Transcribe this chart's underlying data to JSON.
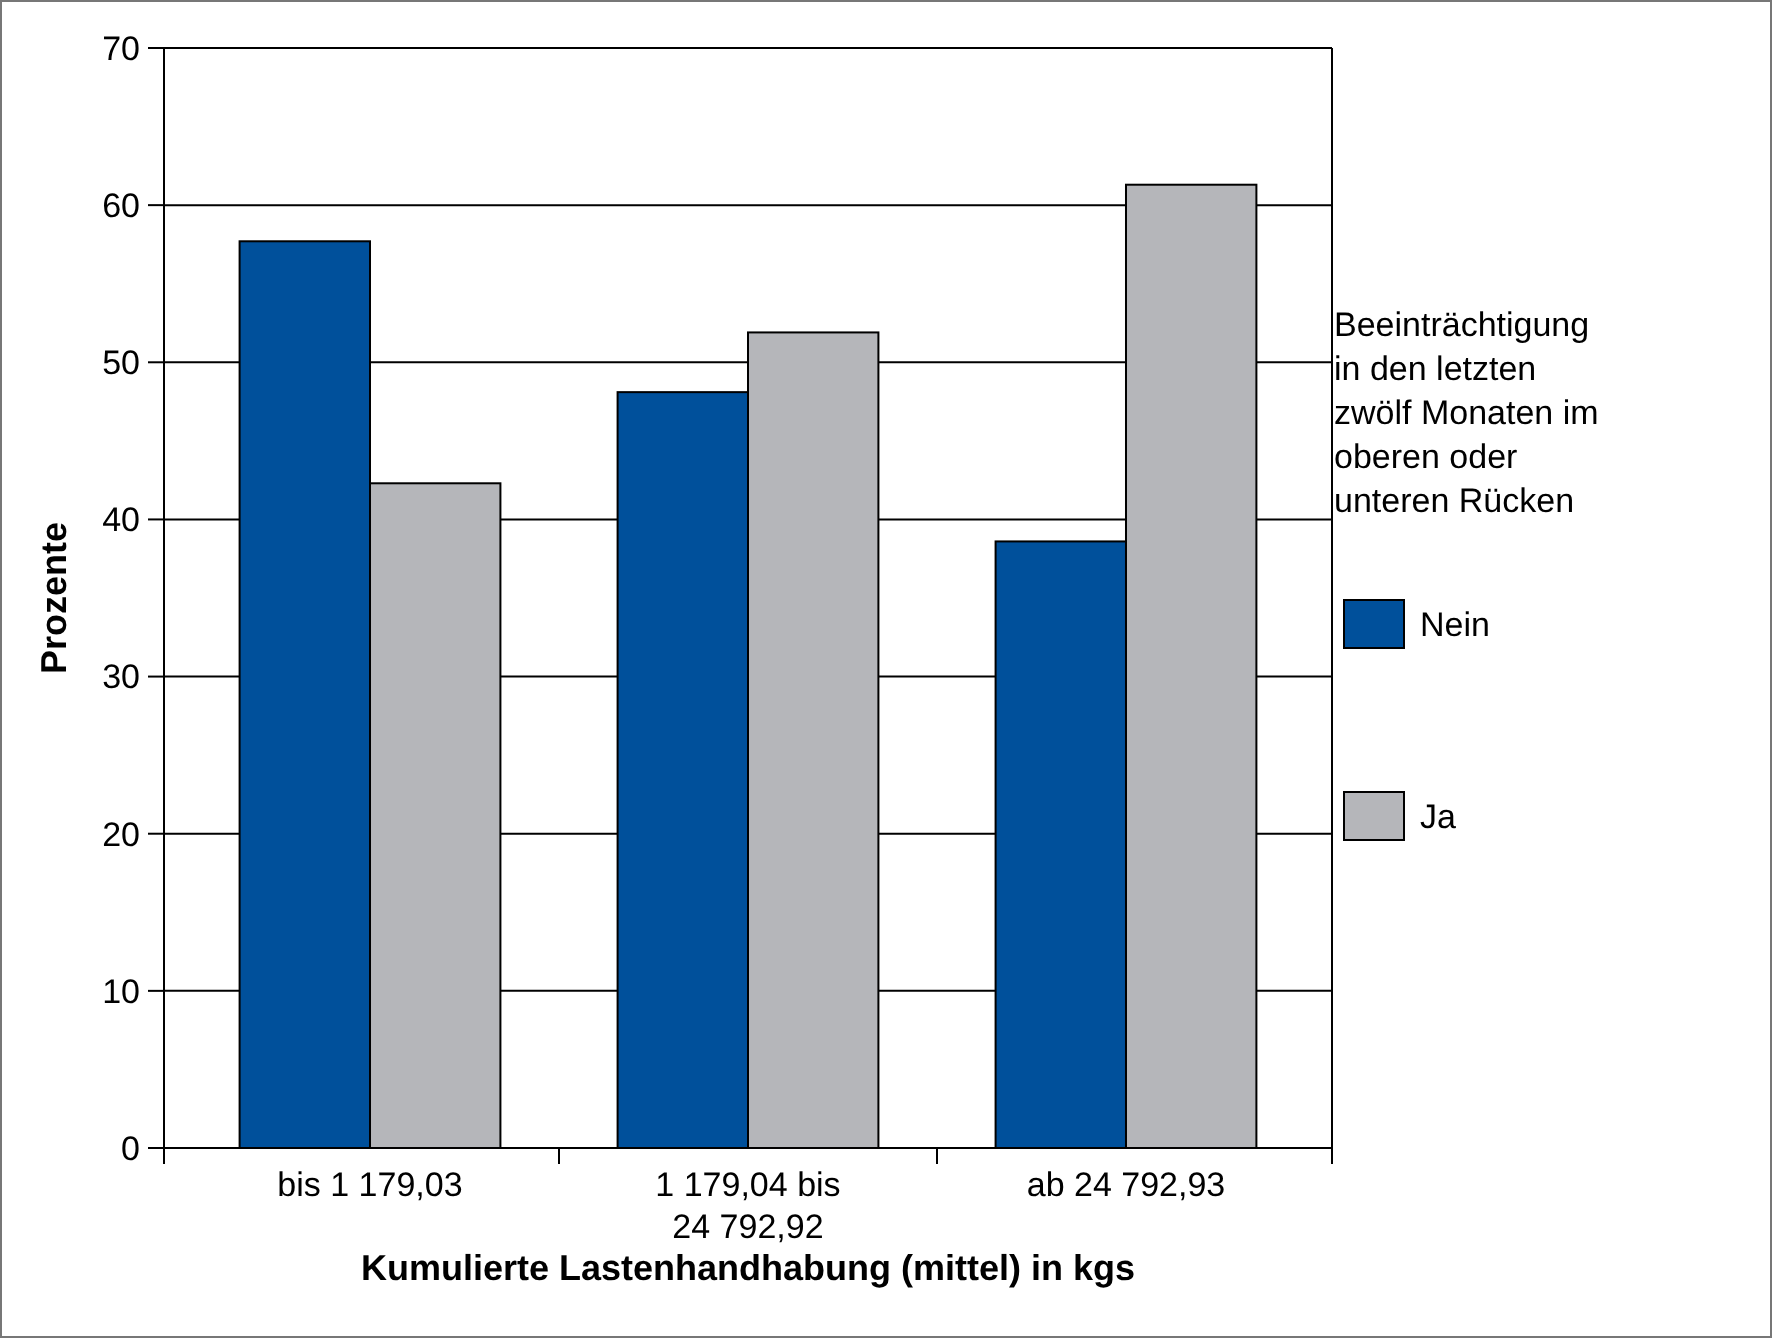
{
  "chart_data": {
    "type": "bar",
    "xlabel": "Kumulierte Lastenhandhabung (mittel) in kgs",
    "ylabel": "Prozente",
    "legend_title": "Beeinträchtigung in den letzten zwölf Monaten im oberen oder unteren Rücken",
    "categories": [
      "bis 1 179,03",
      "1 179,04 bis 24 792,92",
      "ab 24 792,93"
    ],
    "series": [
      {
        "name": "Nein",
        "color": "#00509b",
        "values": [
          57.7,
          48.1,
          38.6
        ]
      },
      {
        "name": "Ja",
        "color": "#b5b6ba",
        "values": [
          42.3,
          51.9,
          61.3
        ]
      }
    ],
    "ylim": [
      0,
      70
    ],
    "yticks": [
      0,
      10,
      20,
      30,
      40,
      50,
      60,
      70
    ],
    "grid": "y",
    "legend": "right"
  }
}
